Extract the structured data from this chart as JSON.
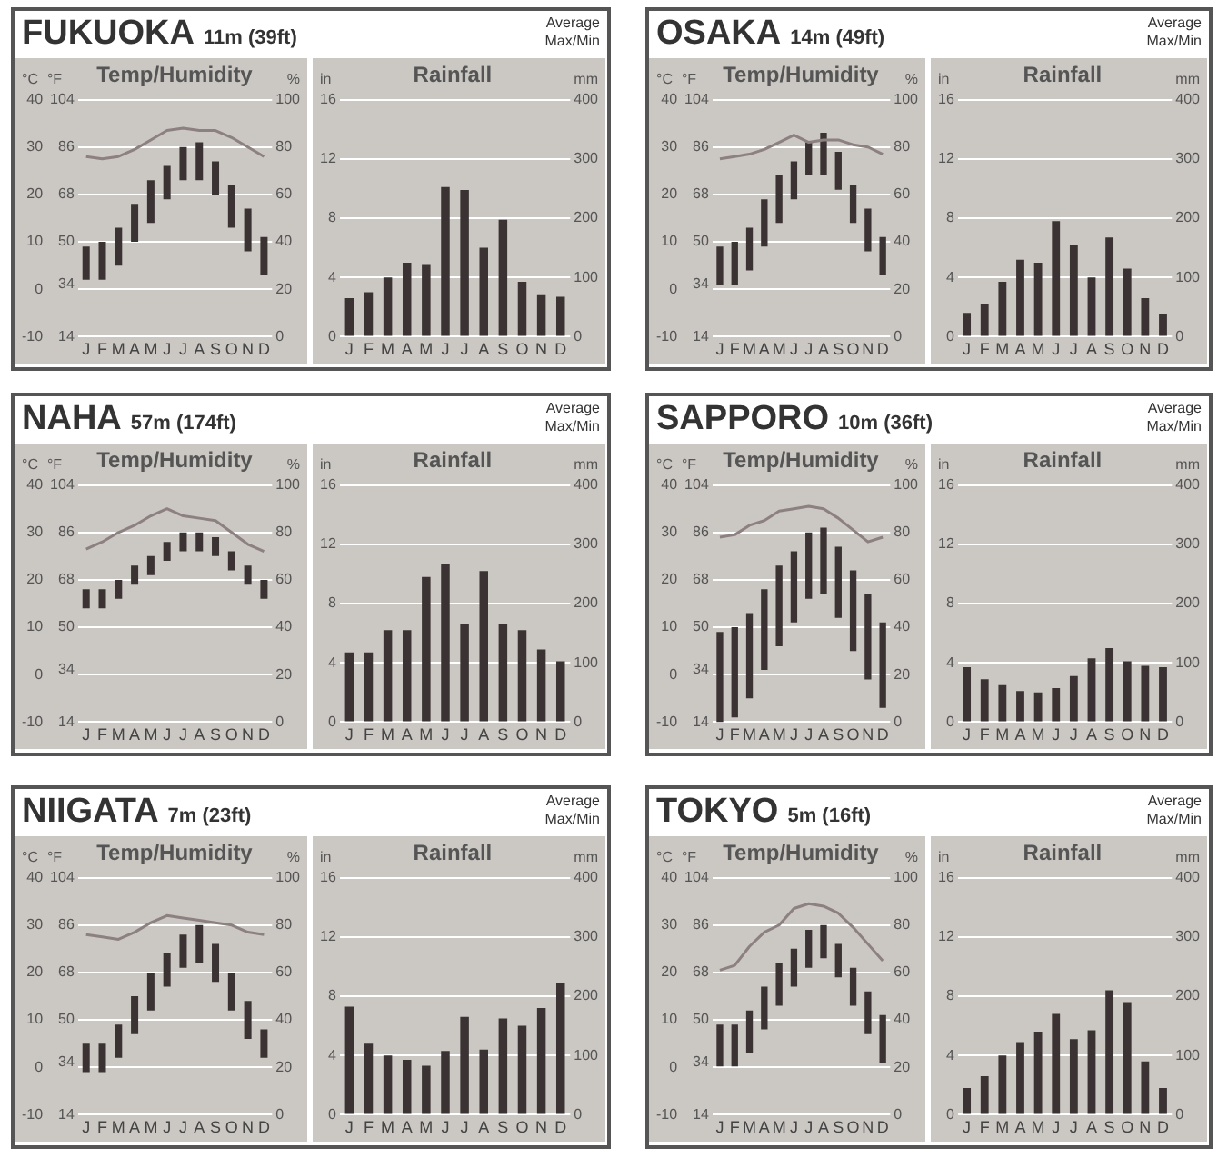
{
  "chart_data": [
    {
      "type": "other",
      "title": "FUKUOKA",
      "subtitle": "11m (39ft)",
      "annotations": [
        "Average",
        "Max/Min"
      ]
    },
    {
      "type": "bar",
      "title": "Temp/Humidity",
      "ylabel": "°C",
      "y3label": "°F",
      "y2label": "%",
      "categories": [
        "J",
        "F",
        "M",
        "A",
        "M",
        "J",
        "J",
        "A",
        "S",
        "O",
        "N",
        "D"
      ],
      "series": [
        {
          "type": "bar",
          "color": "#3b3333",
          "base": [
            2,
            2,
            5,
            10,
            14,
            19,
            23,
            23,
            20,
            13,
            8,
            3
          ],
          "values": [
            7,
            8,
            8,
            8,
            9,
            7,
            7,
            8,
            7,
            9,
            9,
            8
          ]
        },
        {
          "type": "line",
          "axis": "y2",
          "color": "#8c8080",
          "values": [
            76,
            75,
            76,
            79,
            83,
            87,
            88,
            87,
            87,
            84,
            80,
            76
          ]
        }
      ],
      "ylim": [
        -10,
        40
      ],
      "yticks": [
        -10,
        0,
        10,
        20,
        30,
        40
      ],
      "y3lim": [
        14,
        104
      ],
      "y3ticks": [
        14,
        34,
        50,
        68,
        86,
        104
      ],
      "y2lim": [
        0,
        100
      ],
      "y2ticks": [
        0,
        20,
        40,
        60,
        80,
        100
      ],
      "grid": "y"
    },
    {
      "type": "bar",
      "title": "Rainfall",
      "ylabel": "in",
      "y2label": "mm",
      "categories": [
        "J",
        "F",
        "M",
        "A",
        "M",
        "J",
        "J",
        "A",
        "S",
        "O",
        "N",
        "D"
      ],
      "color": "#3b3333",
      "values": [
        2.6,
        3.0,
        4.0,
        5.0,
        4.9,
        10.1,
        9.9,
        6.0,
        7.9,
        3.7,
        2.8,
        2.7
      ],
      "ylim": [
        0,
        16
      ],
      "yticks": [
        0,
        4,
        8,
        12,
        16
      ],
      "y2lim": [
        0,
        400
      ],
      "y2ticks": [
        0,
        100,
        200,
        300,
        400
      ],
      "grid": "y"
    },
    {
      "type": "other",
      "title": "OSAKA",
      "subtitle": "14m (49ft)",
      "annotations": [
        "Average",
        "Max/Min"
      ]
    },
    {
      "type": "bar",
      "title": "Temp/Humidity",
      "ylabel": "°C",
      "y3label": "°F",
      "y2label": "%",
      "categories": [
        "J",
        "F",
        "M",
        "A",
        "M",
        "J",
        "J",
        "A",
        "S",
        "O",
        "N",
        "D"
      ],
      "series": [
        {
          "type": "bar",
          "color": "#3b3333",
          "base": [
            1,
            1,
            4,
            9,
            14,
            19,
            24,
            24,
            21,
            14,
            8,
            3
          ],
          "values": [
            8,
            9,
            9,
            10,
            10,
            8,
            7,
            9,
            8,
            8,
            9,
            8
          ]
        },
        {
          "type": "line",
          "axis": "y2",
          "color": "#8c8080",
          "values": [
            75,
            76,
            77,
            79,
            82,
            85,
            82,
            83,
            83,
            81,
            80,
            77
          ]
        }
      ],
      "ylim": [
        -10,
        40
      ],
      "yticks": [
        -10,
        0,
        10,
        20,
        30,
        40
      ],
      "y3lim": [
        14,
        104
      ],
      "y3ticks": [
        14,
        34,
        50,
        68,
        86,
        104
      ],
      "y2lim": [
        0,
        100
      ],
      "y2ticks": [
        0,
        20,
        40,
        60,
        80,
        100
      ],
      "grid": "y"
    },
    {
      "type": "bar",
      "title": "Rainfall",
      "ylabel": "in",
      "y2label": "mm",
      "categories": [
        "J",
        "F",
        "M",
        "A",
        "M",
        "J",
        "J",
        "A",
        "S",
        "O",
        "N",
        "D"
      ],
      "color": "#3b3333",
      "values": [
        1.6,
        2.2,
        3.7,
        5.2,
        5.0,
        7.8,
        6.2,
        4.0,
        6.7,
        4.6,
        2.6,
        1.5
      ],
      "ylim": [
        0,
        16
      ],
      "yticks": [
        0,
        4,
        8,
        12,
        16
      ],
      "y2lim": [
        0,
        400
      ],
      "y2ticks": [
        0,
        100,
        200,
        300,
        400
      ],
      "grid": "y"
    },
    {
      "type": "other",
      "title": "NAHA",
      "subtitle": "57m (174ft)",
      "annotations": [
        "Average",
        "Max/Min"
      ]
    },
    {
      "type": "bar",
      "title": "Temp/Humidity",
      "ylabel": "°C",
      "y3label": "°F",
      "y2label": "%",
      "categories": [
        "J",
        "F",
        "M",
        "A",
        "M",
        "J",
        "J",
        "A",
        "S",
        "O",
        "N",
        "D"
      ],
      "series": [
        {
          "type": "bar",
          "color": "#3b3333",
          "base": [
            14,
            14,
            16,
            19,
            21,
            24,
            26,
            26,
            25,
            22,
            19,
            16
          ],
          "values": [
            4,
            4,
            4,
            4,
            4,
            4,
            4,
            4,
            4,
            4,
            4,
            4
          ]
        },
        {
          "type": "line",
          "axis": "y2",
          "color": "#8c8080",
          "values": [
            73,
            76,
            80,
            83,
            87,
            90,
            87,
            86,
            85,
            80,
            75,
            72
          ]
        }
      ],
      "ylim": [
        -10,
        40
      ],
      "yticks": [
        -10,
        0,
        10,
        20,
        30,
        40
      ],
      "y3lim": [
        14,
        104
      ],
      "y3ticks": [
        14,
        34,
        50,
        68,
        86,
        104
      ],
      "y2lim": [
        0,
        100
      ],
      "y2ticks": [
        0,
        20,
        40,
        60,
        80,
        100
      ],
      "grid": "y"
    },
    {
      "type": "bar",
      "title": "Rainfall",
      "ylabel": "in",
      "y2label": "mm",
      "categories": [
        "J",
        "F",
        "M",
        "A",
        "M",
        "J",
        "J",
        "A",
        "S",
        "O",
        "N",
        "D"
      ],
      "color": "#3b3333",
      "values": [
        4.7,
        4.7,
        6.2,
        6.2,
        9.8,
        10.7,
        6.6,
        10.2,
        6.6,
        6.2,
        4.9,
        4.1
      ],
      "ylim": [
        0,
        16
      ],
      "yticks": [
        0,
        4,
        8,
        12,
        16
      ],
      "y2lim": [
        0,
        400
      ],
      "y2ticks": [
        0,
        100,
        200,
        300,
        400
      ],
      "grid": "y"
    },
    {
      "type": "other",
      "title": "SAPPORO",
      "subtitle": "10m (36ft)",
      "annotations": [
        "Average",
        "Max/Min"
      ]
    },
    {
      "type": "bar",
      "title": "Temp/Humidity",
      "ylabel": "°C",
      "y3label": "°F",
      "y2label": "%",
      "categories": [
        "J",
        "F",
        "M",
        "A",
        "M",
        "J",
        "J",
        "A",
        "S",
        "O",
        "N",
        "D"
      ],
      "series": [
        {
          "type": "bar",
          "color": "#3b3333",
          "base": [
            -10,
            -9,
            -5,
            1,
            6,
            11,
            16,
            17,
            12,
            5,
            -1,
            -7
          ],
          "values": [
            19,
            19,
            18,
            17,
            17,
            15,
            14,
            14,
            15,
            17,
            18,
            18
          ]
        },
        {
          "type": "line",
          "axis": "y2",
          "color": "#8c8080",
          "values": [
            78,
            79,
            83,
            85,
            89,
            90,
            91,
            90,
            86,
            81,
            76,
            78
          ]
        }
      ],
      "ylim": [
        -10,
        40
      ],
      "yticks": [
        -10,
        0,
        10,
        20,
        30,
        40
      ],
      "y3lim": [
        14,
        104
      ],
      "y3ticks": [
        14,
        34,
        50,
        68,
        86,
        104
      ],
      "y2lim": [
        0,
        100
      ],
      "y2ticks": [
        0,
        20,
        40,
        60,
        80,
        100
      ],
      "grid": "y"
    },
    {
      "type": "bar",
      "title": "Rainfall",
      "ylabel": "in",
      "y2label": "mm",
      "categories": [
        "J",
        "F",
        "M",
        "A",
        "M",
        "J",
        "J",
        "A",
        "S",
        "O",
        "N",
        "D"
      ],
      "color": "#3b3333",
      "values": [
        3.7,
        2.9,
        2.5,
        2.1,
        2.0,
        2.3,
        3.1,
        4.3,
        5.0,
        4.1,
        3.8,
        3.7
      ],
      "ylim": [
        0,
        16
      ],
      "yticks": [
        0,
        4,
        8,
        12,
        16
      ],
      "y2lim": [
        0,
        400
      ],
      "y2ticks": [
        0,
        100,
        200,
        300,
        400
      ],
      "grid": "y"
    },
    {
      "type": "other",
      "title": "NIIGATA",
      "subtitle": "7m (23ft)",
      "annotations": [
        "Average",
        "Max/Min"
      ]
    },
    {
      "type": "bar",
      "title": "Temp/Humidity",
      "ylabel": "°C",
      "y3label": "°F",
      "y2label": "%",
      "categories": [
        "J",
        "F",
        "M",
        "A",
        "M",
        "J",
        "J",
        "A",
        "S",
        "O",
        "N",
        "D"
      ],
      "series": [
        {
          "type": "bar",
          "color": "#3b3333",
          "base": [
            -1,
            -1,
            2,
            7,
            12,
            17,
            21,
            22,
            18,
            12,
            6,
            2
          ],
          "values": [
            6,
            6,
            7,
            8,
            8,
            7,
            7,
            8,
            8,
            8,
            8,
            6
          ]
        },
        {
          "type": "line",
          "axis": "y2",
          "color": "#8c8080",
          "values": [
            76,
            75,
            74,
            77,
            81,
            84,
            83,
            82,
            81,
            80,
            77,
            76
          ]
        }
      ],
      "ylim": [
        -10,
        40
      ],
      "yticks": [
        -10,
        0,
        10,
        20,
        30,
        40
      ],
      "y3lim": [
        14,
        104
      ],
      "y3ticks": [
        14,
        34,
        50,
        68,
        86,
        104
      ],
      "y2lim": [
        0,
        100
      ],
      "y2ticks": [
        0,
        20,
        40,
        60,
        80,
        100
      ],
      "grid": "y"
    },
    {
      "type": "bar",
      "title": "Rainfall",
      "ylabel": "in",
      "y2label": "mm",
      "categories": [
        "J",
        "F",
        "M",
        "A",
        "M",
        "J",
        "J",
        "A",
        "S",
        "O",
        "N",
        "D"
      ],
      "color": "#3b3333",
      "values": [
        7.3,
        4.8,
        4.0,
        3.7,
        3.3,
        4.3,
        6.6,
        4.4,
        6.5,
        6.0,
        7.2,
        8.9
      ],
      "ylim": [
        0,
        16
      ],
      "yticks": [
        0,
        4,
        8,
        12,
        16
      ],
      "y2lim": [
        0,
        400
      ],
      "y2ticks": [
        0,
        100,
        200,
        300,
        400
      ],
      "grid": "y"
    },
    {
      "type": "other",
      "title": "TOKYO",
      "subtitle": "5m (16ft)",
      "annotations": [
        "Average",
        "Max/Min"
      ]
    },
    {
      "type": "bar",
      "title": "Temp/Humidity",
      "ylabel": "°C",
      "y3label": "°F",
      "y2label": "%",
      "categories": [
        "J",
        "F",
        "M",
        "A",
        "M",
        "J",
        "J",
        "A",
        "S",
        "O",
        "N",
        "D"
      ],
      "series": [
        {
          "type": "bar",
          "color": "#3b3333",
          "base": [
            0,
            0,
            3,
            8,
            13,
            17,
            21,
            23,
            19,
            13,
            7,
            1
          ],
          "values": [
            9,
            9,
            9,
            9,
            9,
            8,
            8,
            7,
            7,
            8,
            9,
            10
          ]
        },
        {
          "type": "line",
          "axis": "y2",
          "color": "#8c8080",
          "values": [
            61,
            63,
            71,
            77,
            80,
            87,
            89,
            88,
            85,
            79,
            72,
            65
          ]
        }
      ],
      "ylim": [
        -10,
        40
      ],
      "yticks": [
        -10,
        0,
        10,
        20,
        30,
        40
      ],
      "y3lim": [
        14,
        104
      ],
      "y3ticks": [
        14,
        34,
        50,
        68,
        86,
        104
      ],
      "y2lim": [
        0,
        100
      ],
      "y2ticks": [
        0,
        20,
        40,
        60,
        80,
        100
      ],
      "grid": "y"
    },
    {
      "type": "bar",
      "title": "Rainfall",
      "ylabel": "in",
      "y2label": "mm",
      "categories": [
        "J",
        "F",
        "M",
        "A",
        "M",
        "J",
        "J",
        "A",
        "S",
        "O",
        "N",
        "D"
      ],
      "color": "#3b3333",
      "values": [
        1.8,
        2.6,
        4.0,
        4.9,
        5.6,
        6.8,
        5.1,
        5.7,
        8.4,
        7.6,
        3.6,
        1.8
      ],
      "ylim": [
        0,
        16
      ],
      "yticks": [
        0,
        4,
        8,
        12,
        16
      ],
      "y2lim": [
        0,
        400
      ],
      "y2ticks": [
        0,
        100,
        200,
        300,
        400
      ],
      "grid": "y"
    }
  ]
}
